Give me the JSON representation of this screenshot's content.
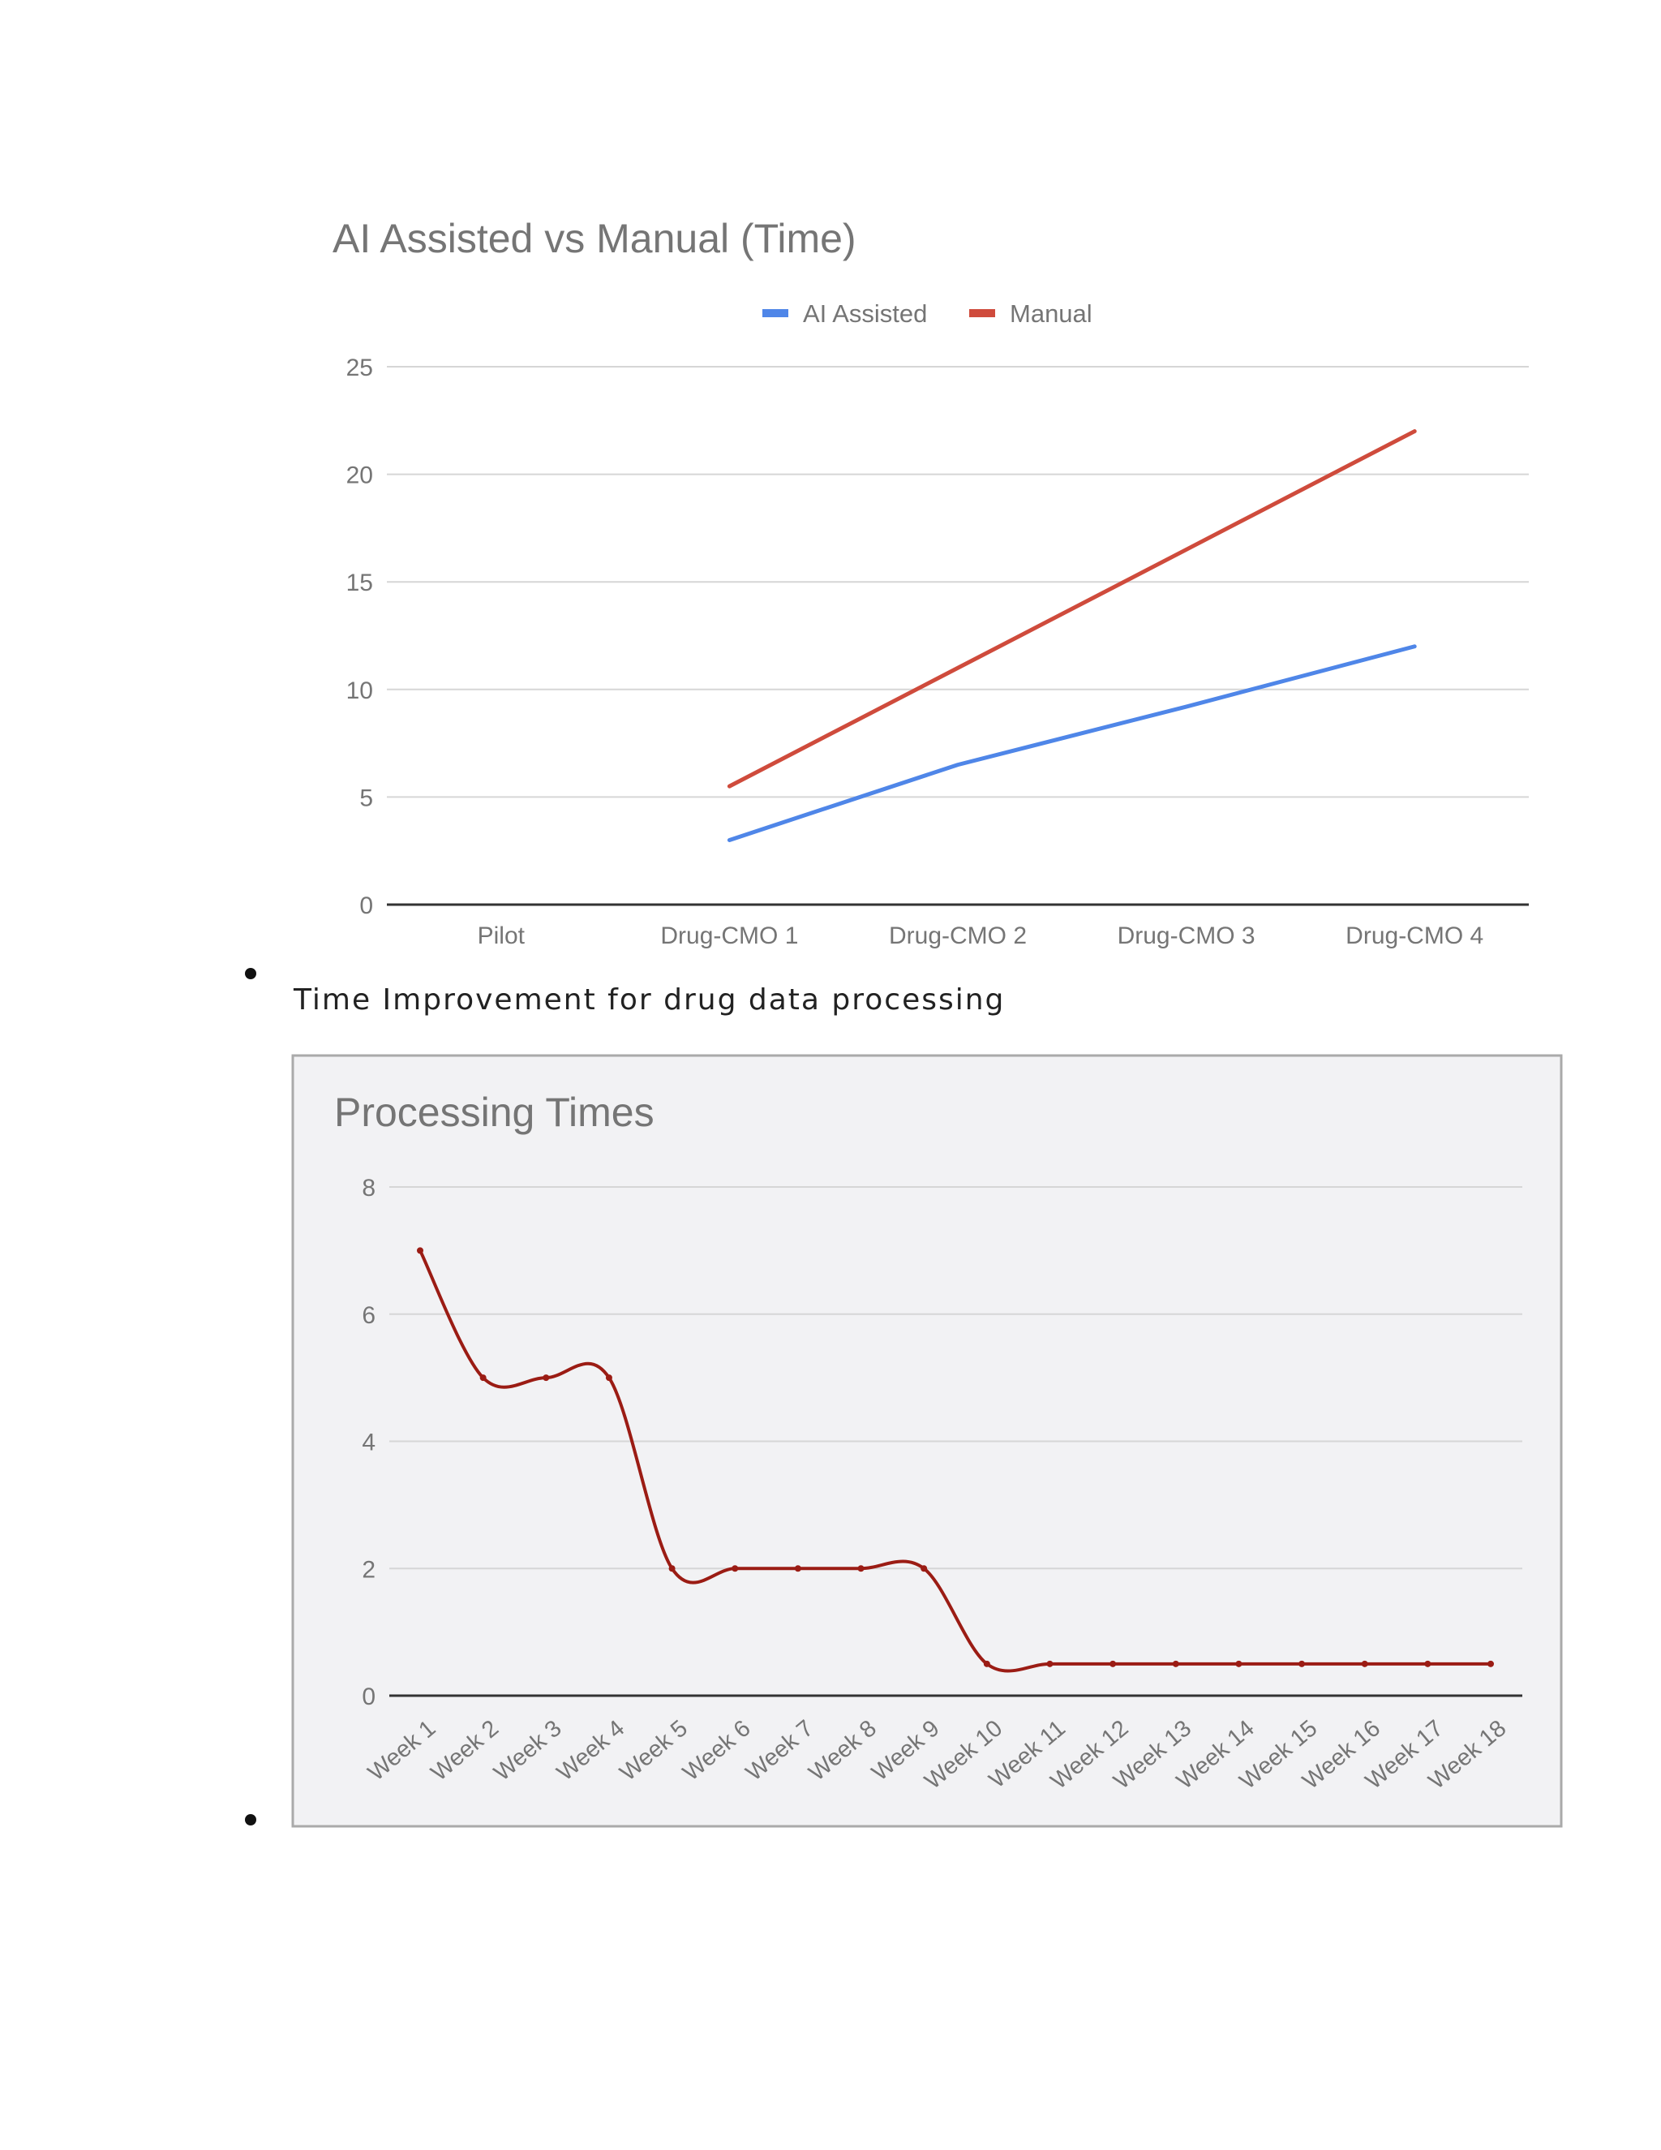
{
  "caption": "Time Improvement for drug data processing",
  "colors": {
    "ai_assisted": "#4f86e8",
    "manual": "#cf4b3c",
    "processing": "#9b1c14",
    "grid": "#d6d6d6",
    "axis": "#333333",
    "text": "#757575",
    "panel_bg": "#f2f2f4",
    "panel_border": "#aaaaaa"
  },
  "chart_data": [
    {
      "type": "line",
      "title": "AI Assisted vs Manual (Time)",
      "categories": [
        "Pilot",
        "Drug-CMO 1",
        "Drug-CMO 2",
        "Drug-CMO 3",
        "Drug-CMO 4"
      ],
      "series": [
        {
          "name": "AI Assisted",
          "values": [
            null,
            3,
            6.5,
            9.2,
            12
          ]
        },
        {
          "name": "Manual",
          "values": [
            null,
            5.5,
            11,
            16.5,
            22
          ]
        }
      ],
      "xlabel": "",
      "ylabel": "",
      "ylim": [
        0,
        25
      ],
      "yticks": [
        0,
        5,
        10,
        15,
        20,
        25
      ],
      "grid": true,
      "legend": "top-center"
    },
    {
      "type": "line",
      "title": "Processing Times",
      "categories": [
        "Week 1",
        "Week 2",
        "Week 3",
        "Week 4",
        "Week 5",
        "Week 6",
        "Week 7",
        "Week 8",
        "Week 9",
        "Week 10",
        "Week 11",
        "Week 12",
        "Week 13",
        "Week 14",
        "Week 15",
        "Week 16",
        "Week 17",
        "Week 18"
      ],
      "series": [
        {
          "name": "Processing Times",
          "values": [
            7,
            5,
            5,
            5,
            2,
            2,
            2,
            2,
            2,
            0.5,
            0.5,
            0.5,
            0.5,
            0.5,
            0.5,
            0.5,
            0.5,
            0.5
          ]
        }
      ],
      "xlabel": "",
      "ylabel": "",
      "ylim": [
        0,
        8
      ],
      "yticks": [
        0,
        2,
        4,
        6,
        8
      ],
      "grid": true,
      "legend": "none",
      "smooth": true
    }
  ]
}
